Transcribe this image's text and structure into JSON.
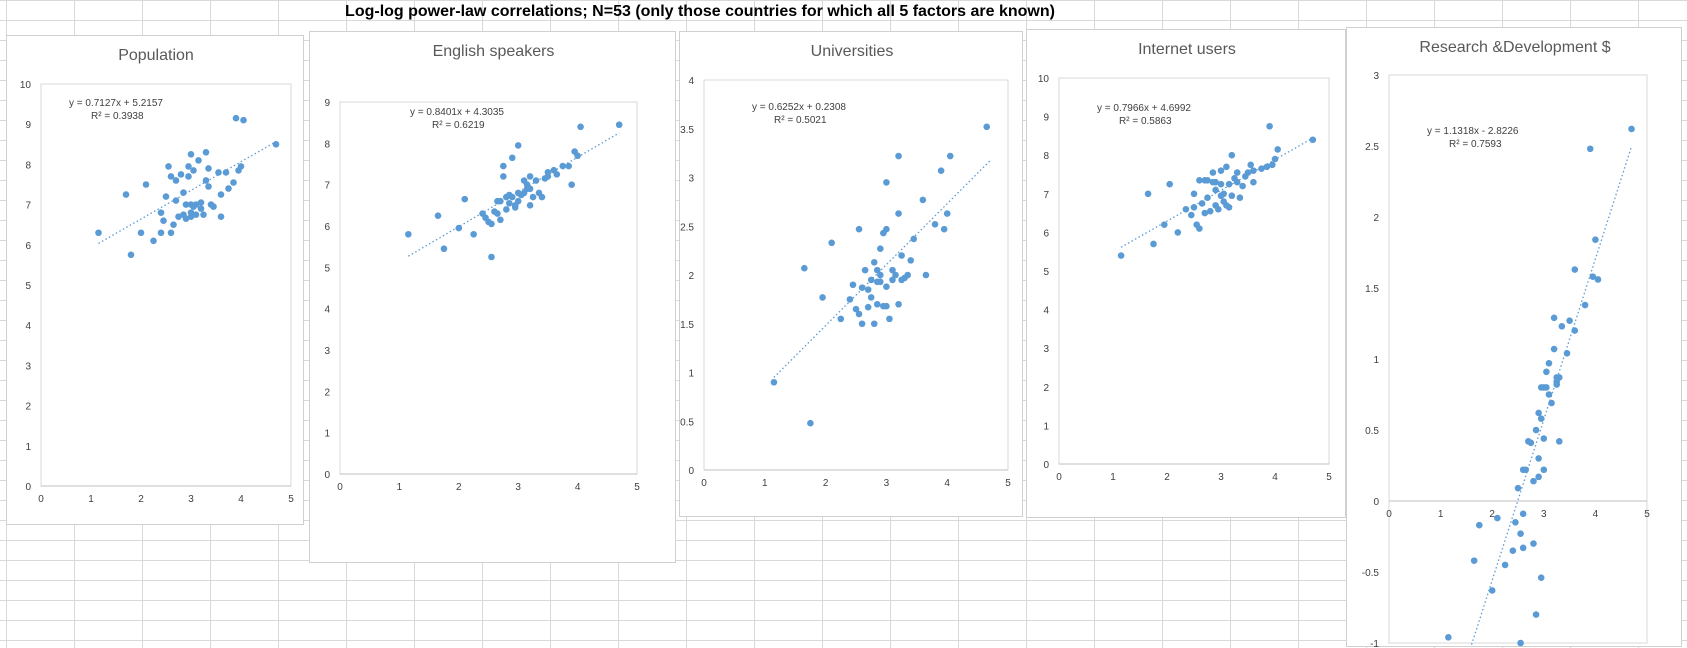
{
  "sheet": {
    "title": "Log-log power-law correlations; N=53 (only those countries for which all 5 factors are known)"
  },
  "colors": {
    "marker": "#5b9bd5",
    "trendline": "#5b9bd5",
    "axis": "#d9d9d9",
    "text": "#404040",
    "title": "#595959"
  },
  "chart_data": [
    {
      "type": "scatter",
      "title": "Population",
      "xlim": [
        0,
        5
      ],
      "ylim": [
        0,
        10
      ],
      "xticks": [
        0,
        1,
        2,
        3,
        4,
        5
      ],
      "yticks": [
        0,
        1,
        2,
        3,
        4,
        5,
        6,
        7,
        8,
        9,
        10
      ],
      "trendline": {
        "slope": 0.7127,
        "intercept": 5.2157,
        "x_range": [
          1.15,
          4.7
        ],
        "equation": "y = 0.7127x + 5.2157",
        "r2": "R² = 0.3938"
      },
      "points": [
        [
          1.15,
          6.3
        ],
        [
          1.7,
          7.25
        ],
        [
          1.8,
          5.75
        ],
        [
          2.0,
          6.3
        ],
        [
          2.1,
          7.5
        ],
        [
          2.25,
          6.1
        ],
        [
          2.4,
          6.8
        ],
        [
          2.45,
          6.6
        ],
        [
          2.5,
          7.2
        ],
        [
          2.55,
          7.95
        ],
        [
          2.6,
          7.7
        ],
        [
          2.6,
          6.3
        ],
        [
          2.65,
          6.5
        ],
        [
          2.7,
          7.1
        ],
        [
          2.7,
          7.6
        ],
        [
          2.75,
          6.7
        ],
        [
          2.8,
          7.75
        ],
        [
          2.85,
          6.75
        ],
        [
          2.85,
          7.3
        ],
        [
          2.9,
          6.65
        ],
        [
          2.95,
          7.7
        ],
        [
          2.95,
          7.95
        ],
        [
          3.0,
          8.25
        ],
        [
          3.0,
          6.8
        ],
        [
          3.0,
          7.0
        ],
        [
          3.05,
          6.95
        ],
        [
          3.05,
          7.85
        ],
        [
          3.1,
          6.75
        ],
        [
          3.15,
          8.1
        ],
        [
          3.2,
          7.05
        ],
        [
          3.2,
          6.9
        ],
        [
          3.25,
          6.75
        ],
        [
          3.3,
          8.3
        ],
        [
          3.3,
          7.6
        ],
        [
          3.35,
          7.45
        ],
        [
          3.35,
          7.9
        ],
        [
          3.4,
          7.0
        ],
        [
          3.45,
          6.95
        ],
        [
          3.55,
          7.8
        ],
        [
          3.6,
          7.25
        ],
        [
          3.7,
          7.8
        ],
        [
          3.75,
          7.4
        ],
        [
          3.85,
          7.55
        ],
        [
          3.9,
          9.15
        ],
        [
          3.95,
          7.85
        ],
        [
          4.0,
          7.95
        ],
        [
          4.05,
          9.1
        ],
        [
          4.7,
          8.5
        ],
        [
          2.9,
          7.0
        ],
        [
          3.1,
          7.0
        ],
        [
          2.4,
          6.3
        ],
        [
          3.0,
          6.7
        ],
        [
          3.6,
          6.7
        ]
      ]
    },
    {
      "type": "scatter",
      "title": "English speakers",
      "xlim": [
        0,
        5
      ],
      "ylim": [
        0,
        9
      ],
      "xticks": [
        0,
        1,
        2,
        3,
        4,
        5
      ],
      "yticks": [
        0,
        1,
        2,
        3,
        4,
        5,
        6,
        7,
        8,
        9
      ],
      "trendline": {
        "slope": 0.8401,
        "intercept": 4.3035,
        "x_range": [
          1.15,
          4.7
        ],
        "equation": "y = 0.8401x + 4.3035",
        "r2": "R² = 0.6219"
      },
      "points": [
        [
          1.15,
          5.8
        ],
        [
          1.65,
          6.25
        ],
        [
          1.75,
          5.45
        ],
        [
          2.0,
          5.95
        ],
        [
          2.1,
          6.65
        ],
        [
          2.25,
          5.8
        ],
        [
          2.4,
          6.3
        ],
        [
          2.45,
          6.2
        ],
        [
          2.5,
          6.1
        ],
        [
          2.55,
          5.25
        ],
        [
          2.55,
          6.05
        ],
        [
          2.6,
          6.35
        ],
        [
          2.65,
          6.6
        ],
        [
          2.7,
          6.6
        ],
        [
          2.7,
          6.15
        ],
        [
          2.75,
          7.45
        ],
        [
          2.75,
          7.2
        ],
        [
          2.8,
          6.4
        ],
        [
          2.85,
          6.55
        ],
        [
          2.85,
          6.75
        ],
        [
          2.9,
          7.65
        ],
        [
          2.9,
          6.7
        ],
        [
          2.95,
          6.5
        ],
        [
          3.0,
          7.95
        ],
        [
          3.0,
          6.6
        ],
        [
          3.05,
          6.75
        ],
        [
          3.1,
          7.1
        ],
        [
          3.1,
          6.8
        ],
        [
          3.15,
          7.0
        ],
        [
          3.2,
          7.2
        ],
        [
          3.2,
          6.9
        ],
        [
          3.25,
          6.7
        ],
        [
          3.3,
          7.1
        ],
        [
          3.35,
          6.8
        ],
        [
          3.4,
          6.7
        ],
        [
          3.45,
          7.15
        ],
        [
          3.5,
          7.3
        ],
        [
          3.6,
          7.35
        ],
        [
          3.65,
          7.25
        ],
        [
          3.75,
          7.45
        ],
        [
          3.85,
          7.45
        ],
        [
          3.9,
          7.0
        ],
        [
          3.95,
          7.8
        ],
        [
          4.0,
          7.7
        ],
        [
          4.05,
          8.4
        ],
        [
          4.7,
          8.45
        ],
        [
          2.8,
          6.7
        ],
        [
          3.0,
          6.8
        ],
        [
          3.2,
          6.5
        ],
        [
          3.5,
          7.2
        ],
        [
          2.95,
          6.45
        ],
        [
          3.15,
          6.9
        ],
        [
          2.65,
          6.3
        ]
      ]
    },
    {
      "type": "scatter",
      "title": "Universities",
      "xlim": [
        0,
        5
      ],
      "ylim": [
        0,
        4
      ],
      "xticks": [
        0,
        1,
        2,
        3,
        4,
        5
      ],
      "yticks": [
        0,
        0.5,
        1,
        1.5,
        2,
        2.5,
        3,
        3.5,
        4
      ],
      "trendline": {
        "slope": 0.6252,
        "intercept": 0.2308,
        "x_range": [
          1.15,
          4.7
        ],
        "equation": "y = 0.6252x + 0.2308",
        "r2": "R² = 0.5021"
      },
      "points": [
        [
          1.15,
          0.9
        ],
        [
          1.65,
          2.07
        ],
        [
          1.75,
          0.48
        ],
        [
          1.95,
          1.77
        ],
        [
          2.1,
          2.33
        ],
        [
          2.25,
          1.55
        ],
        [
          2.4,
          1.75
        ],
        [
          2.45,
          1.9
        ],
        [
          2.55,
          2.47
        ],
        [
          2.55,
          1.6
        ],
        [
          2.6,
          1.5
        ],
        [
          2.6,
          1.87
        ],
        [
          2.65,
          2.05
        ],
        [
          2.7,
          1.67
        ],
        [
          2.75,
          1.95
        ],
        [
          2.75,
          1.77
        ],
        [
          2.8,
          1.5
        ],
        [
          2.8,
          2.13
        ],
        [
          2.85,
          1.7
        ],
        [
          2.85,
          1.93
        ],
        [
          2.9,
          1.93
        ],
        [
          2.9,
          2.27
        ],
        [
          2.95,
          1.68
        ],
        [
          2.95,
          2.43
        ],
        [
          3.0,
          2.47
        ],
        [
          3.0,
          1.88
        ],
        [
          3.0,
          2.95
        ],
        [
          3.05,
          1.55
        ],
        [
          3.1,
          1.95
        ],
        [
          3.15,
          2.0
        ],
        [
          3.2,
          2.63
        ],
        [
          3.2,
          1.7
        ],
        [
          3.2,
          3.22
        ],
        [
          3.25,
          2.2
        ],
        [
          3.3,
          1.97
        ],
        [
          3.35,
          2.0
        ],
        [
          3.4,
          2.15
        ],
        [
          3.45,
          2.37
        ],
        [
          3.6,
          2.77
        ],
        [
          3.65,
          2.0
        ],
        [
          3.8,
          2.52
        ],
        [
          3.9,
          3.07
        ],
        [
          3.95,
          2.47
        ],
        [
          4.0,
          2.63
        ],
        [
          4.05,
          3.22
        ],
        [
          4.65,
          3.52
        ],
        [
          2.9,
          2.0
        ],
        [
          3.0,
          1.68
        ],
        [
          3.25,
          1.95
        ],
        [
          2.5,
          1.65
        ],
        [
          2.7,
          1.85
        ],
        [
          3.1,
          2.05
        ],
        [
          2.85,
          2.05
        ]
      ]
    },
    {
      "type": "scatter",
      "title": "Internet users",
      "xlim": [
        0,
        5
      ],
      "ylim": [
        0,
        10
      ],
      "xticks": [
        0,
        1,
        2,
        3,
        4,
        5
      ],
      "yticks": [
        0,
        1,
        2,
        3,
        4,
        5,
        6,
        7,
        8,
        9,
        10
      ],
      "trendline": {
        "slope": 0.7966,
        "intercept": 4.6992,
        "x_range": [
          1.15,
          4.7
        ],
        "equation": "y = 0.7966x + 4.6992",
        "r2": "R² = 0.5863"
      },
      "points": [
        [
          1.15,
          5.4
        ],
        [
          1.65,
          7.0
        ],
        [
          1.75,
          5.7
        ],
        [
          1.95,
          6.2
        ],
        [
          2.05,
          7.25
        ],
        [
          2.2,
          6.0
        ],
        [
          2.35,
          6.6
        ],
        [
          2.45,
          6.45
        ],
        [
          2.5,
          7.0
        ],
        [
          2.55,
          6.2
        ],
        [
          2.6,
          7.35
        ],
        [
          2.6,
          6.1
        ],
        [
          2.65,
          6.75
        ],
        [
          2.7,
          7.35
        ],
        [
          2.75,
          6.9
        ],
        [
          2.8,
          6.55
        ],
        [
          2.85,
          7.3
        ],
        [
          2.85,
          7.55
        ],
        [
          2.9,
          6.7
        ],
        [
          2.9,
          7.1
        ],
        [
          2.95,
          6.6
        ],
        [
          3.0,
          7.6
        ],
        [
          3.0,
          7.25
        ],
        [
          3.05,
          6.8
        ],
        [
          3.1,
          7.7
        ],
        [
          3.1,
          6.7
        ],
        [
          3.15,
          7.25
        ],
        [
          3.2,
          6.95
        ],
        [
          3.2,
          8.0
        ],
        [
          3.25,
          7.4
        ],
        [
          3.3,
          7.55
        ],
        [
          3.35,
          6.9
        ],
        [
          3.4,
          7.2
        ],
        [
          3.45,
          7.45
        ],
        [
          3.5,
          7.55
        ],
        [
          3.55,
          7.75
        ],
        [
          3.6,
          7.3
        ],
        [
          3.75,
          7.65
        ],
        [
          3.85,
          7.7
        ],
        [
          3.9,
          8.75
        ],
        [
          3.95,
          7.75
        ],
        [
          4.0,
          7.9
        ],
        [
          4.05,
          8.15
        ],
        [
          4.7,
          8.4
        ],
        [
          2.7,
          6.5
        ],
        [
          3.0,
          6.95
        ],
        [
          3.3,
          7.3
        ],
        [
          2.9,
          7.3
        ],
        [
          3.15,
          6.65
        ],
        [
          2.5,
          6.65
        ],
        [
          3.05,
          7.0
        ],
        [
          3.6,
          7.6
        ],
        [
          2.75,
          7.35
        ]
      ]
    },
    {
      "type": "scatter",
      "title": "Research &Development $",
      "xlim": [
        0,
        5
      ],
      "ylim": [
        -1,
        3
      ],
      "xticks": [
        0,
        1,
        2,
        3,
        4,
        5
      ],
      "yticks": [
        -1,
        -0.5,
        0,
        0.5,
        1,
        1.5,
        2,
        2.5,
        3
      ],
      "trendline": {
        "slope": 1.1318,
        "intercept": -2.8226,
        "x_range": [
          1.6,
          4.7
        ],
        "equation": "y = 1.1318x - 2.8226",
        "r2": "R² = 0.7593"
      },
      "points": [
        [
          1.15,
          -0.96
        ],
        [
          1.65,
          -0.42
        ],
        [
          1.75,
          -0.17
        ],
        [
          2.0,
          -0.63
        ],
        [
          2.1,
          -0.12
        ],
        [
          2.25,
          -0.45
        ],
        [
          2.4,
          -0.35
        ],
        [
          2.45,
          -0.15
        ],
        [
          2.5,
          0.09
        ],
        [
          2.55,
          -1.0
        ],
        [
          2.55,
          -0.23
        ],
        [
          2.6,
          -0.09
        ],
        [
          2.6,
          -0.33
        ],
        [
          2.65,
          0.22
        ],
        [
          2.7,
          0.42
        ],
        [
          2.75,
          0.41
        ],
        [
          2.8,
          -0.3
        ],
        [
          2.8,
          0.14
        ],
        [
          2.85,
          -0.8
        ],
        [
          2.85,
          0.5
        ],
        [
          2.9,
          0.17
        ],
        [
          2.9,
          0.62
        ],
        [
          2.95,
          -0.54
        ],
        [
          2.95,
          0.58
        ],
        [
          3.0,
          0.44
        ],
        [
          3.0,
          0.22
        ],
        [
          3.05,
          0.8
        ],
        [
          3.05,
          0.91
        ],
        [
          3.1,
          0.97
        ],
        [
          3.15,
          0.69
        ],
        [
          3.2,
          1.07
        ],
        [
          3.2,
          1.29
        ],
        [
          3.25,
          0.82
        ],
        [
          3.25,
          0.84
        ],
        [
          3.3,
          0.42
        ],
        [
          3.3,
          0.87
        ],
        [
          3.35,
          1.23
        ],
        [
          3.45,
          1.04
        ],
        [
          3.5,
          1.27
        ],
        [
          3.6,
          1.2
        ],
        [
          3.6,
          1.63
        ],
        [
          3.8,
          1.38
        ],
        [
          3.9,
          2.48
        ],
        [
          3.95,
          1.58
        ],
        [
          4.0,
          1.84
        ],
        [
          4.05,
          1.56
        ],
        [
          4.7,
          2.62
        ],
        [
          2.95,
          0.8
        ],
        [
          3.1,
          0.75
        ],
        [
          3.25,
          0.87
        ],
        [
          2.6,
          0.22
        ],
        [
          3.0,
          0.8
        ],
        [
          2.9,
          0.3
        ]
      ]
    }
  ]
}
